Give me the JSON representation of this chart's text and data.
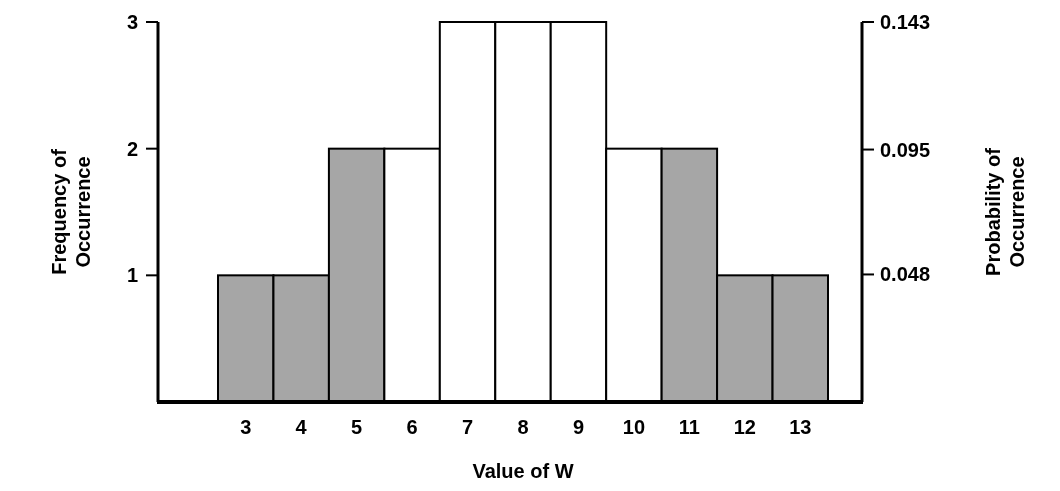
{
  "chart_data": {
    "type": "bar",
    "xlabel": "Value of W",
    "ylabel": "Frequency of\nOccurrence",
    "y2label": "Probability of\nOccurrence",
    "categories": [
      "3",
      "4",
      "5",
      "6",
      "7",
      "8",
      "9",
      "10",
      "11",
      "12",
      "13"
    ],
    "values": [
      1,
      1,
      2,
      2,
      3,
      3,
      3,
      2,
      2,
      1,
      1
    ],
    "colors": [
      "#a6a6a6",
      "#a6a6a6",
      "#a6a6a6",
      "#ffffff",
      "#ffffff",
      "#ffffff",
      "#ffffff",
      "#ffffff",
      "#a6a6a6",
      "#a6a6a6",
      "#a6a6a6"
    ],
    "ylim": [
      0,
      3
    ],
    "yticks": [
      1,
      2,
      3
    ],
    "y2lim": [
      0,
      0.143
    ],
    "y2ticks": [
      0.048,
      0.095,
      0.143
    ]
  }
}
